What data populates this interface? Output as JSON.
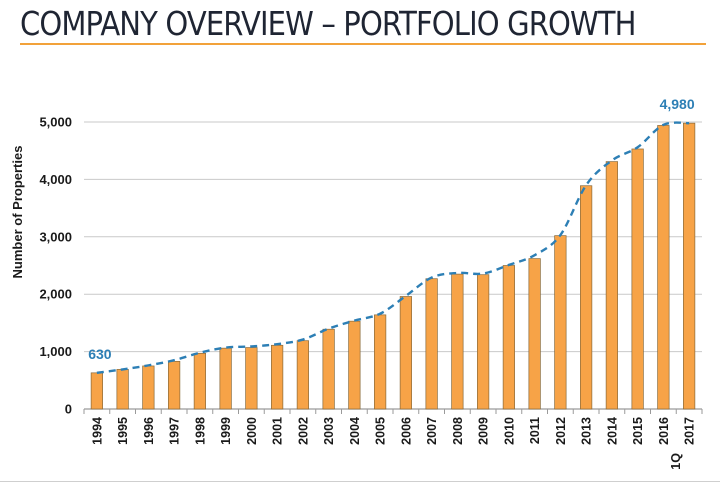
{
  "page": {
    "title": "COMPANY OVERVIEW – PORTFOLIO GROWTH"
  },
  "chart_data": {
    "type": "bar",
    "title": "",
    "xlabel": "",
    "ylabel": "Number of Properties",
    "ylim": [
      0,
      5000
    ],
    "yticks": [
      "0",
      "1,000",
      "2,000",
      "3,000",
      "4,000",
      "5,000"
    ],
    "categories": [
      "1994",
      "1995",
      "1996",
      "1997",
      "1998",
      "1999",
      "2000",
      "2001",
      "2002",
      "2003",
      "2004",
      "2005",
      "2006",
      "2007",
      "2008",
      "2009",
      "2010",
      "2011",
      "2012",
      "2013",
      "2014",
      "2015",
      "2016",
      "1Q 2017"
    ],
    "values": [
      630,
      690,
      750,
      830,
      970,
      1060,
      1070,
      1110,
      1190,
      1390,
      1530,
      1640,
      1960,
      2270,
      2350,
      2340,
      2500,
      2620,
      3020,
      3890,
      4310,
      4530,
      4940,
      4980
    ],
    "trend_line": [
      630,
      690,
      760,
      850,
      980,
      1070,
      1090,
      1130,
      1210,
      1400,
      1540,
      1660,
      1970,
      2290,
      2370,
      2360,
      2510,
      2680,
      3030,
      3900,
      4330,
      4560,
      4950,
      4980
    ],
    "data_labels": [
      {
        "category": "1994",
        "text": "630"
      },
      {
        "category": "1Q 2017",
        "text": "4,980"
      }
    ],
    "grid": true,
    "legend": "none",
    "colors": {
      "bar": "#f7a347",
      "bar_border": "#8a6a3a",
      "trend": "#2d7fb5",
      "grid": "#c9c9c9",
      "label": "#2d7fb5"
    }
  }
}
